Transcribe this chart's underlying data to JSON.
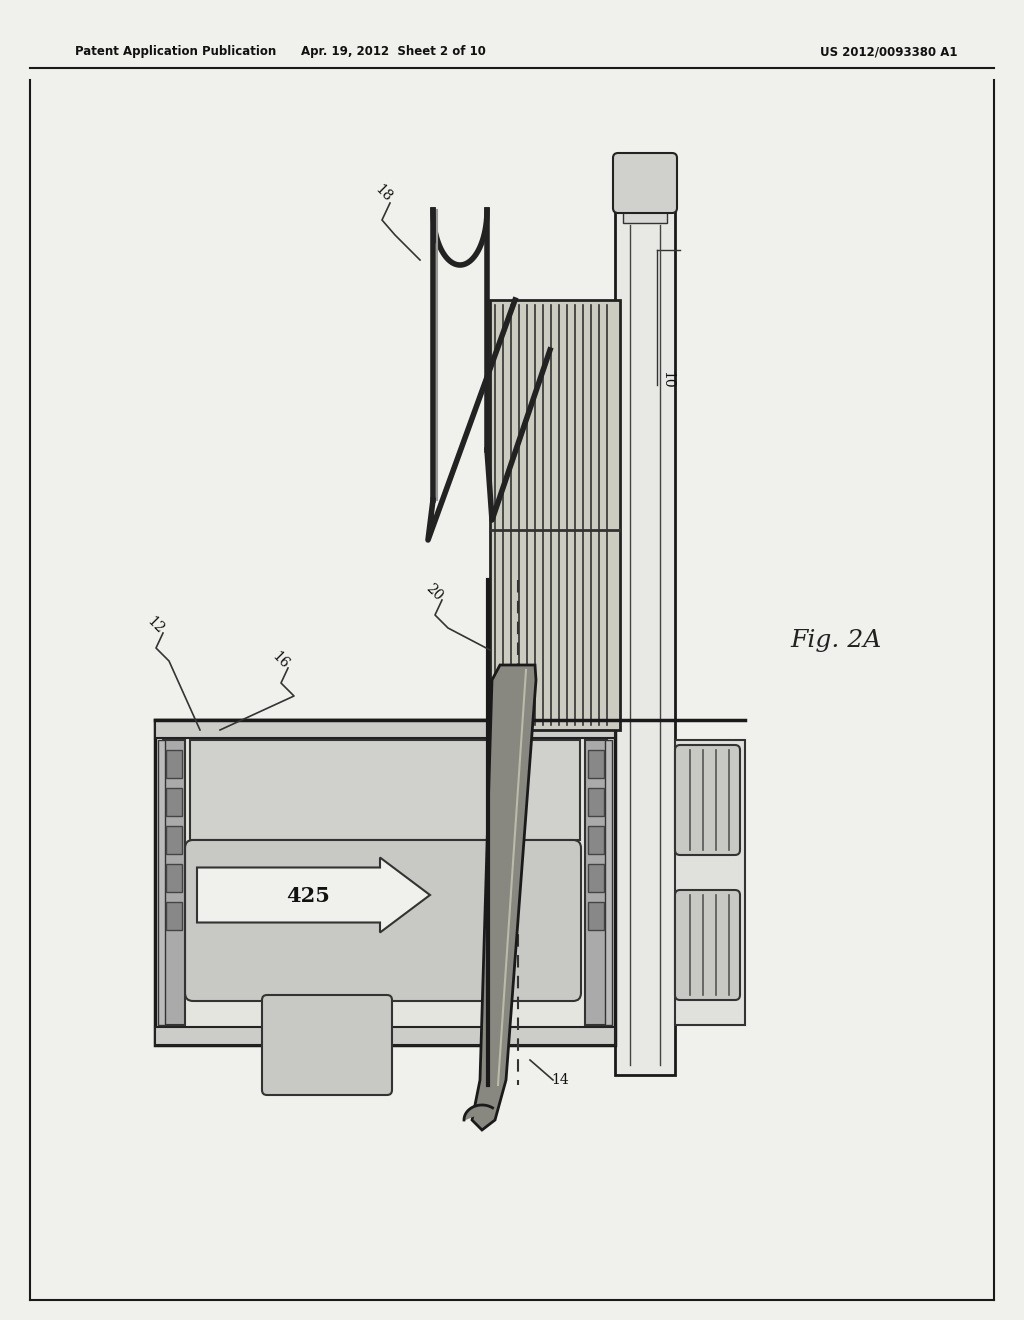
{
  "header_left": "Patent Application Publication",
  "header_center": "Apr. 19, 2012  Sheet 2 of 10",
  "header_right": "US 2012/0093380 A1",
  "fig_label": "Fig. 2A",
  "bg_color": "#f0f0ec",
  "label_10": "10",
  "label_12": "12",
  "label_14": "14",
  "label_16": "16",
  "label_18": "18",
  "label_20": "20",
  "label_425": "425"
}
